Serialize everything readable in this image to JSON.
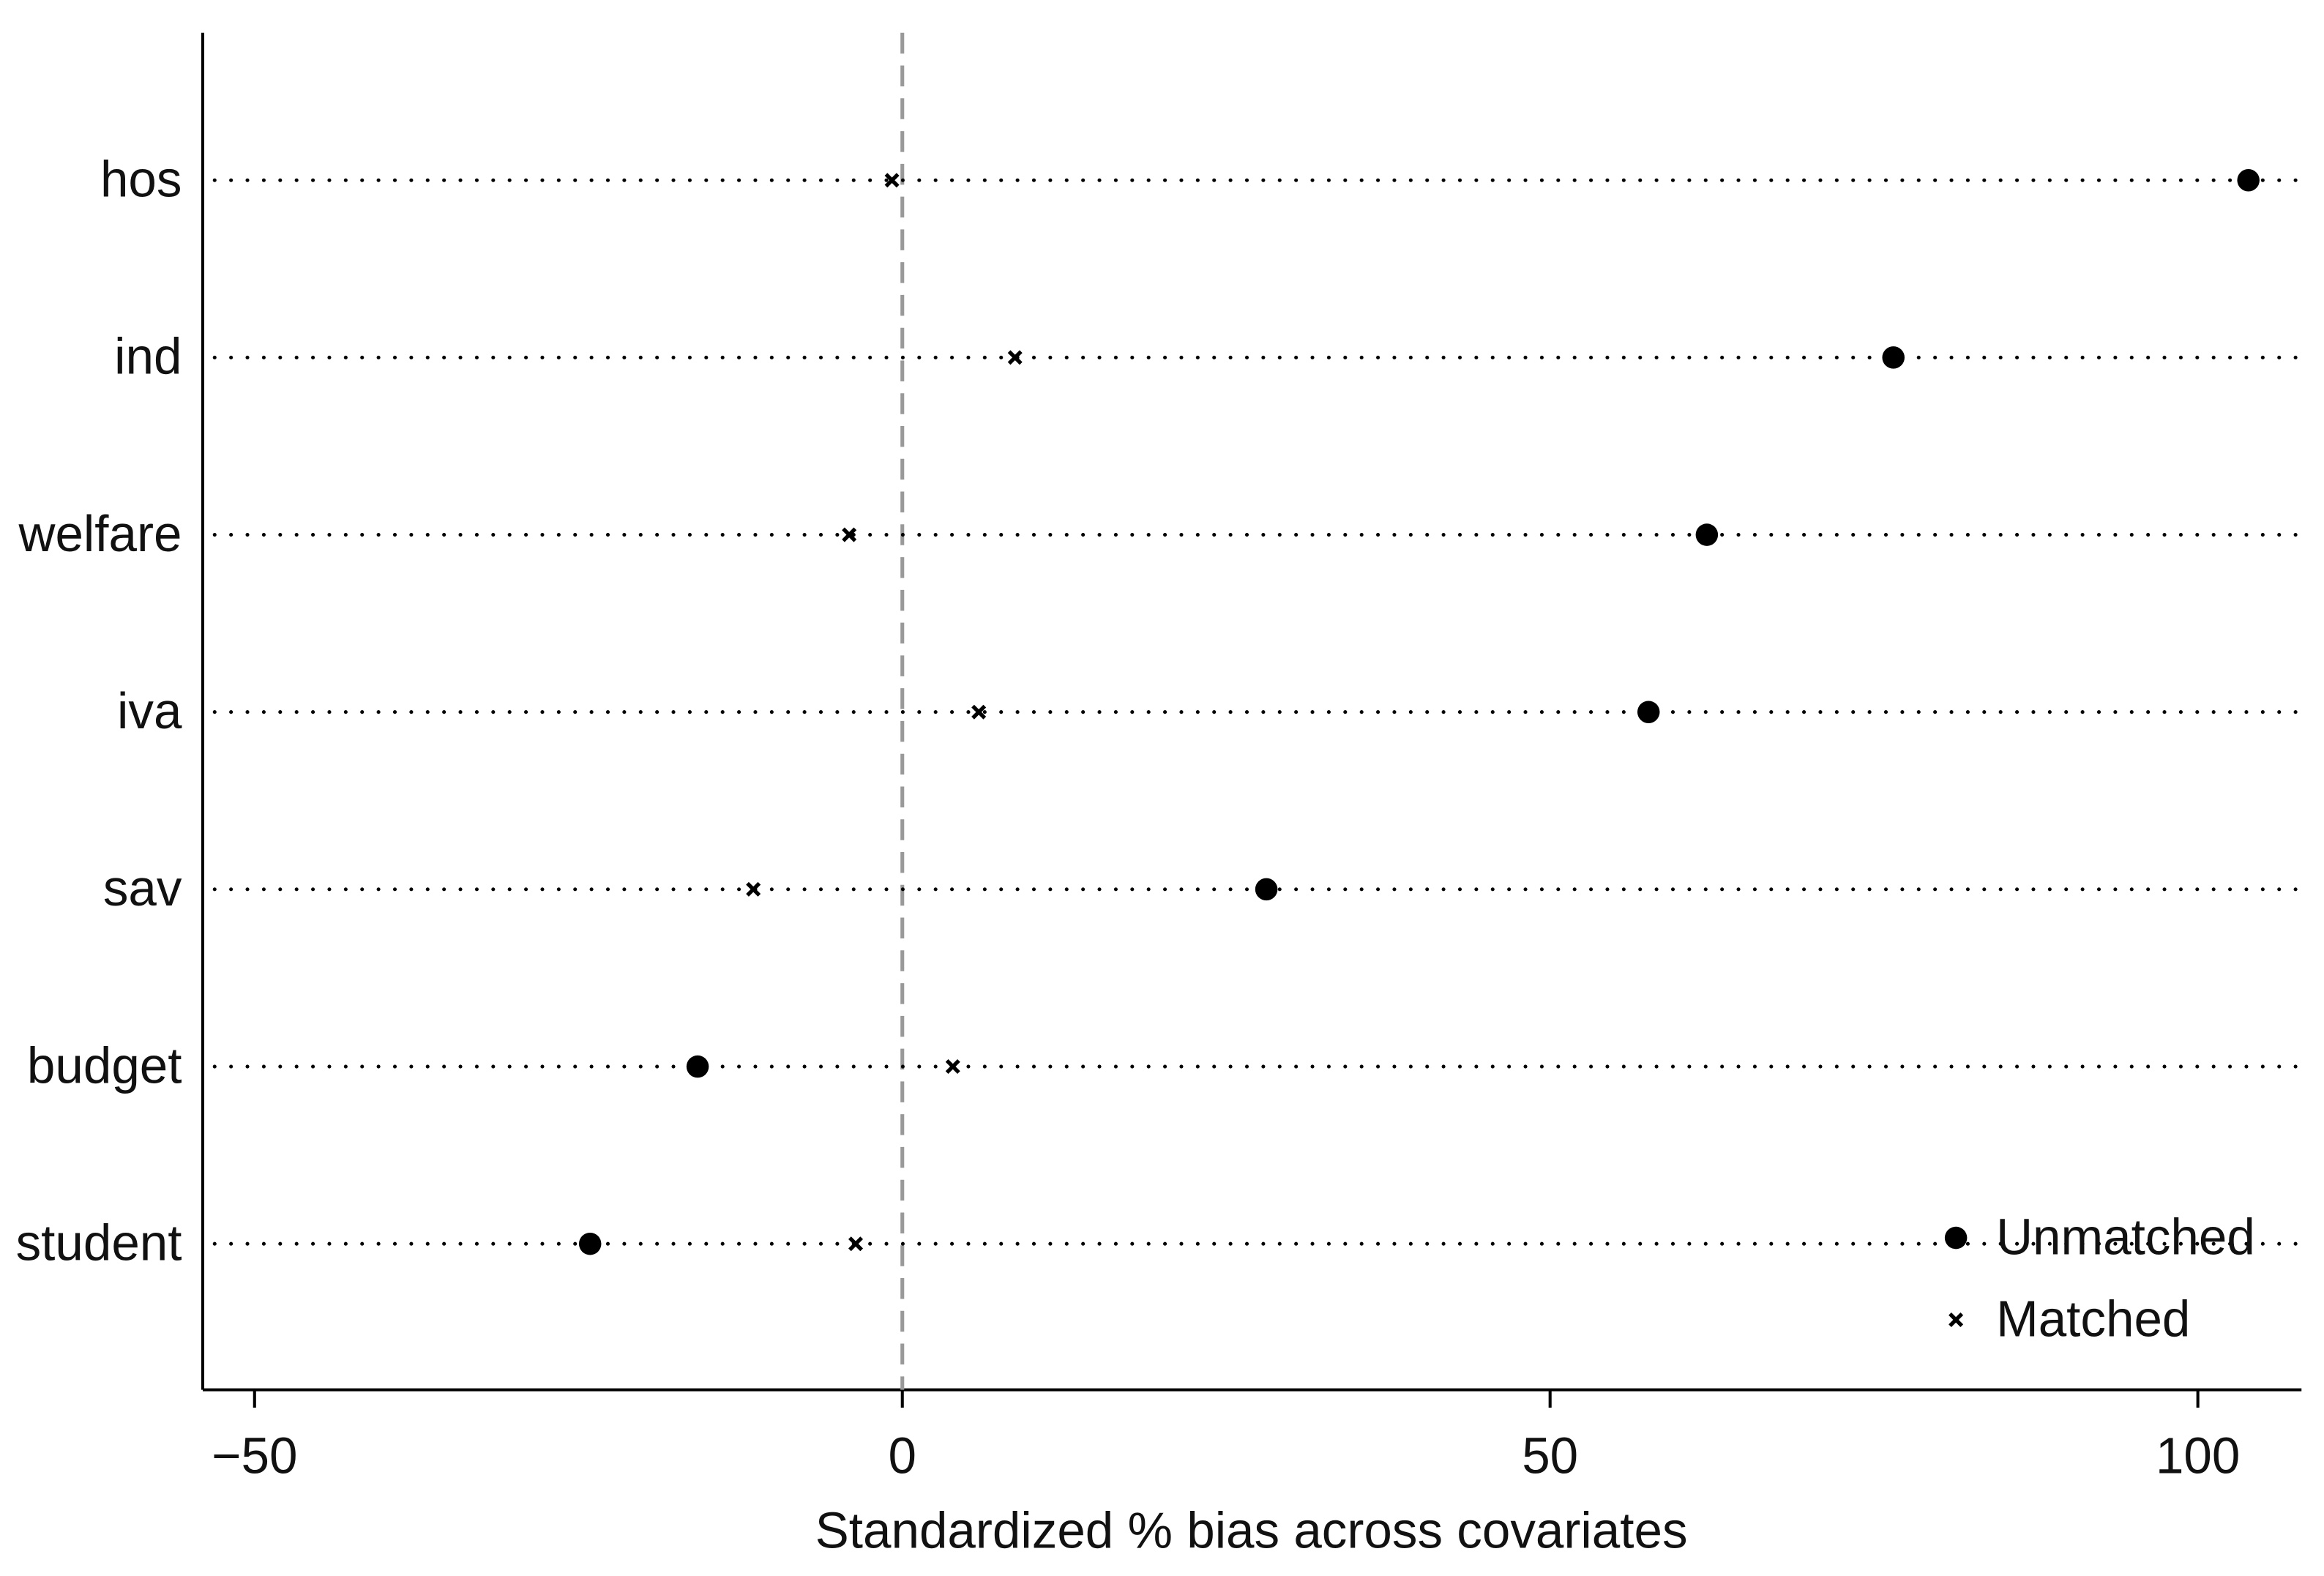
{
  "chart_data": {
    "type": "dot",
    "xlabel": "Standardized % bias across covariates",
    "categories": [
      "hos",
      "ind",
      "welfare",
      "iva",
      "sav",
      "budget",
      "student"
    ],
    "series": [
      {
        "name": "Unmatched",
        "color": "#000000",
        "marker": "circle",
        "values": [
          103.9,
          76.5,
          62.1,
          57.6,
          28.1,
          -15.8,
          -24.1
        ]
      },
      {
        "name": "Matched",
        "color": "#000000",
        "marker": "x",
        "values": [
          -0.8,
          8.7,
          -4.1,
          5.9,
          -11.5,
          3.9,
          -3.6
        ]
      }
    ],
    "xlim": [
      -54,
      108
    ],
    "xticks": [
      {
        "value": -50,
        "label": "−50"
      },
      0,
      50,
      100
    ],
    "reference_line": 0,
    "legend": "bottom-right"
  }
}
